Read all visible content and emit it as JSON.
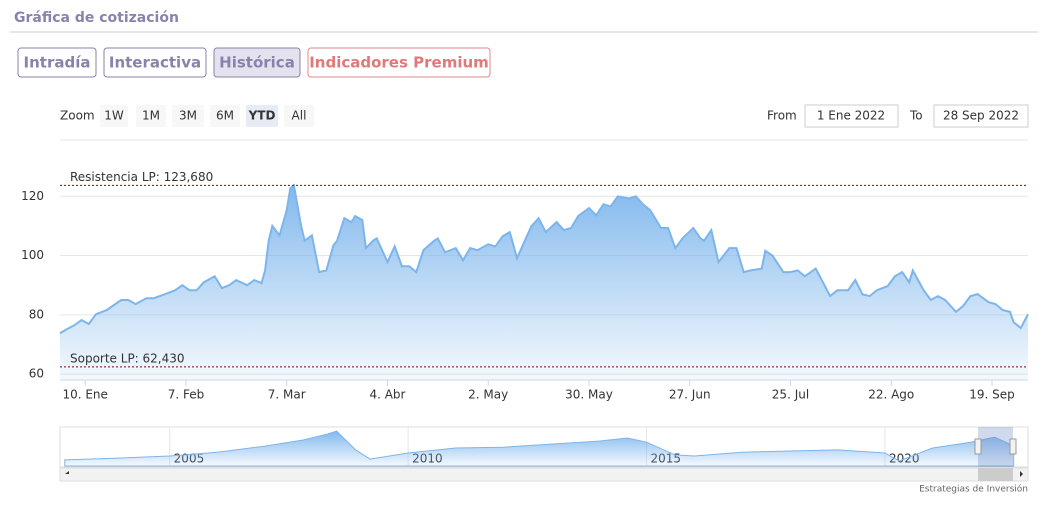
{
  "header": {
    "title": "Gráfica de cotización"
  },
  "tabs": [
    "Intradía",
    "Interactiva",
    "Histórica",
    "Indicadores Premium"
  ],
  "zoom": {
    "label": "Zoom",
    "buttons": [
      "1W",
      "1M",
      "3M",
      "6M",
      "YTD",
      "All"
    ]
  },
  "range": {
    "from_label": "From",
    "from": "1 Ene 2022",
    "to_label": "To",
    "to": "28 Sep 2022"
  },
  "chart_data": {
    "type": "area",
    "color": "#7cb5ec",
    "x": [
      3,
      5,
      7,
      9,
      11,
      13,
      16,
      18,
      20,
      22,
      24,
      27,
      29,
      32,
      35,
      37,
      39,
      41,
      43,
      46,
      48,
      50,
      52,
      55,
      57,
      59,
      60,
      61,
      62,
      64,
      66,
      67,
      68,
      70,
      71,
      73,
      75,
      77,
      79,
      80,
      82,
      84,
      85,
      87,
      88,
      90,
      91,
      94,
      96,
      98,
      100,
      102,
      104,
      107,
      108,
      110,
      113,
      115,
      117,
      119,
      122,
      124,
      126,
      128,
      130,
      132,
      134,
      136,
      138,
      141,
      143,
      145,
      147,
      150,
      152,
      154,
      156,
      158,
      161,
      163,
      165,
      167,
      170,
      172,
      174,
      176,
      179,
      181,
      182,
      184,
      186,
      189,
      191,
      193,
      195,
      198,
      199,
      201,
      204,
      206,
      208,
      210,
      213,
      215,
      217,
      219,
      222,
      224,
      226,
      228,
      230,
      233,
      235,
      237,
      239,
      240,
      243,
      245,
      247,
      249,
      252,
      254,
      256,
      258,
      261,
      263,
      265,
      267,
      268,
      270,
      272
    ],
    "values": [
      73.8,
      75.2,
      76.5,
      78.2,
      76.9,
      80.2,
      81.6,
      83.3,
      85,
      85,
      83.6,
      85.6,
      85.6,
      86.9,
      88.3,
      90,
      88.3,
      88.3,
      91,
      93,
      89,
      90,
      91.7,
      90,
      91.7,
      90.7,
      95,
      105,
      110,
      106.8,
      115.3,
      122.7,
      123.7,
      110,
      105,
      106.8,
      94.4,
      95,
      103.5,
      105,
      112.6,
      111.3,
      113.3,
      112,
      102.5,
      105,
      105.8,
      97.8,
      103.1,
      96.4,
      96.4,
      94.4,
      101.8,
      105,
      105.8,
      101.1,
      102.5,
      98.4,
      102.5,
      101.8,
      103.8,
      103.1,
      106.5,
      107.9,
      99.1,
      104.5,
      109.9,
      112.6,
      107.9,
      111.3,
      108.6,
      109.3,
      113.3,
      116,
      113.6,
      117.3,
      116.6,
      120,
      119.3,
      120,
      117.3,
      115.3,
      109.3,
      109.3,
      102.5,
      105.8,
      109.3,
      105.8,
      105,
      108.6,
      97.8,
      102.5,
      102.5,
      94.4,
      95,
      95.6,
      101.6,
      100,
      94.4,
      94.4,
      95,
      93,
      95.6,
      91,
      86.3,
      88.3,
      88.3,
      91.7,
      86.9,
      86.3,
      88.3,
      89.7,
      93,
      94.4,
      91,
      95,
      88.3,
      85,
      86.3,
      85,
      81,
      83,
      86.3,
      87,
      84.3,
      83.6,
      81.6,
      81,
      77.5,
      75.5,
      80.2
    ],
    "xlim": [
      3,
      272
    ],
    "ylim": [
      58,
      139
    ],
    "yticks": [
      60,
      80,
      100,
      120
    ],
    "xticks": [
      {
        "value": 10,
        "label": "10. Ene"
      },
      {
        "value": 38,
        "label": "7. Feb"
      },
      {
        "value": 66,
        "label": "7. Mar"
      },
      {
        "value": 94,
        "label": "4. Abr"
      },
      {
        "value": 122,
        "label": "2. May"
      },
      {
        "value": 150,
        "label": "30. May"
      },
      {
        "value": 178,
        "label": "27. Jun"
      },
      {
        "value": 206,
        "label": "25. Jul"
      },
      {
        "value": 234,
        "label": "22. Ago"
      },
      {
        "value": 262,
        "label": "19. Sep"
      }
    ],
    "grid": true,
    "resistance": {
      "value": 123.68,
      "label": "Resistencia LP: 123,680"
    },
    "support": {
      "value": 62.43,
      "label": "Soporte LP: 62,430"
    },
    "navigator": {
      "x": [
        2002.8,
        2004,
        2005,
        2006,
        2007,
        2007.8,
        2008.3,
        2008.5,
        2008.9,
        2009.2,
        2010,
        2011,
        2012,
        2013,
        2014,
        2014.6,
        2015,
        2015.6,
        2016,
        2017,
        2018,
        2019,
        2020,
        2020.3,
        2021,
        2021.8,
        2022.3,
        2022.7
      ],
      "values": [
        22,
        29,
        36,
        50,
        72,
        94,
        115,
        126,
        58,
        25,
        47,
        65,
        68,
        79,
        90,
        101,
        86,
        40,
        36,
        50,
        54,
        58,
        47,
        18,
        65,
        86,
        104,
        72
      ],
      "xlim": [
        2002.7,
        2023
      ],
      "ylim": [
        0,
        130
      ],
      "xticks": [
        2005,
        2010,
        2015,
        2020
      ]
    }
  },
  "footer": "Estrategias de Inversión"
}
